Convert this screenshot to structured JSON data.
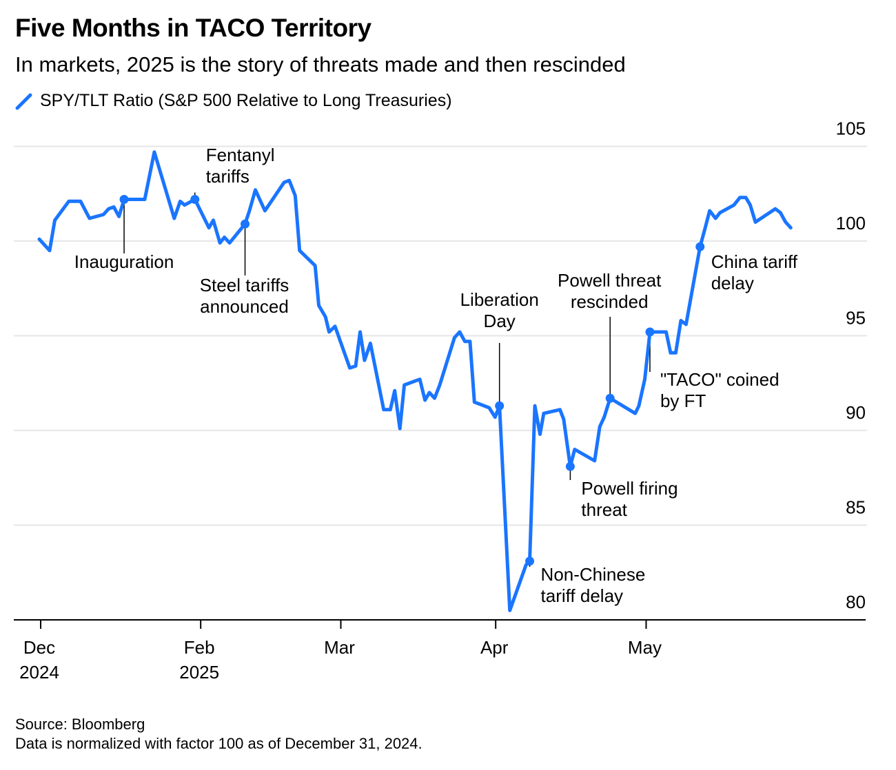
{
  "title": "Five Months in TACO Territory",
  "subtitle": "In markets, 2025 is the story of threats made and then rescinded",
  "legend": {
    "label": "SPY/TLT Ratio (S&P 500 Relative to Long Treasuries)",
    "icon": "line-swatch-icon",
    "color": "#1a75ff"
  },
  "footer": {
    "source": "Source: Bloomberg",
    "note": "Data is normalized with factor 100 as of December 31, 2024."
  },
  "chart_data": {
    "type": "line",
    "title": "Five Months in TACO Territory",
    "xlabel": "",
    "ylabel": "",
    "x_units": "trading days since Dec 31, 2024",
    "xlim": [
      0,
      110
    ],
    "ylim": [
      80,
      105
    ],
    "yticks": [
      80,
      85,
      90,
      95,
      100,
      105
    ],
    "grid": true,
    "legend_position": "top-left",
    "xticks": [
      {
        "x": 0,
        "label": [
          "Dec",
          "2024"
        ]
      },
      {
        "x": 21.7,
        "label": [
          "Feb",
          "2025"
        ]
      },
      {
        "x": 40.7,
        "label": [
          "Mar"
        ]
      },
      {
        "x": 61.7,
        "label": [
          "Apr"
        ]
      },
      {
        "x": 82.1,
        "label": [
          "May"
        ]
      }
    ],
    "series": [
      {
        "name": "SPY/TLT Ratio (S&P 500 Relative to Long Treasuries)",
        "color": "#1a75ff",
        "points": [
          [
            0,
            100.1
          ],
          [
            1.4,
            99.5
          ],
          [
            2.1,
            101.1
          ],
          [
            4.0,
            102.1
          ],
          [
            5.6,
            102.1
          ],
          [
            6.8,
            101.2
          ],
          [
            8.7,
            101.4
          ],
          [
            9.4,
            101.7
          ],
          [
            10.1,
            101.8
          ],
          [
            10.8,
            101.3
          ],
          [
            11.5,
            102.2
          ],
          [
            14.3,
            102.2
          ],
          [
            15.6,
            104.7
          ],
          [
            18.3,
            101.2
          ],
          [
            19.1,
            102.1
          ],
          [
            19.7,
            101.9
          ],
          [
            21.1,
            102.2
          ],
          [
            23.0,
            100.7
          ],
          [
            23.6,
            101.1
          ],
          [
            24.5,
            99.9
          ],
          [
            25.1,
            100.2
          ],
          [
            25.8,
            99.9
          ],
          [
            27.9,
            100.9
          ],
          [
            28.5,
            101.6
          ],
          [
            29.3,
            102.7
          ],
          [
            30.6,
            101.6
          ],
          [
            33.2,
            103.1
          ],
          [
            33.9,
            103.2
          ],
          [
            34.7,
            102.4
          ],
          [
            35.3,
            99.5
          ],
          [
            37.4,
            98.7
          ],
          [
            37.9,
            96.6
          ],
          [
            38.8,
            96.0
          ],
          [
            39.3,
            95.2
          ],
          [
            40.1,
            95.5
          ],
          [
            42.1,
            93.3
          ],
          [
            42.9,
            93.4
          ],
          [
            43.5,
            95.2
          ],
          [
            44.1,
            93.7
          ],
          [
            44.9,
            94.6
          ],
          [
            46.7,
            91.1
          ],
          [
            47.6,
            91.1
          ],
          [
            48.2,
            92.1
          ],
          [
            48.9,
            90.1
          ],
          [
            49.5,
            92.4
          ],
          [
            51.6,
            92.7
          ],
          [
            52.3,
            91.6
          ],
          [
            52.9,
            92.0
          ],
          [
            53.6,
            91.7
          ],
          [
            54.3,
            92.4
          ],
          [
            56.3,
            94.9
          ],
          [
            57.0,
            95.2
          ],
          [
            57.7,
            94.7
          ],
          [
            58.4,
            94.7
          ],
          [
            59.0,
            91.5
          ],
          [
            61.0,
            91.2
          ],
          [
            61.8,
            90.7
          ],
          [
            62.4,
            91.3
          ],
          [
            63.8,
            80.5
          ],
          [
            66.0,
            82.9
          ],
          [
            66.5,
            83.1
          ],
          [
            67.2,
            91.3
          ],
          [
            67.9,
            89.8
          ],
          [
            68.4,
            90.9
          ],
          [
            70.6,
            91.1
          ],
          [
            71.1,
            90.6
          ],
          [
            72.0,
            88.1
          ],
          [
            72.6,
            89.0
          ],
          [
            75.3,
            88.4
          ],
          [
            76.0,
            90.2
          ],
          [
            76.6,
            90.7
          ],
          [
            77.4,
            91.7
          ],
          [
            80.8,
            90.9
          ],
          [
            81.3,
            91.3
          ],
          [
            82.1,
            92.7
          ],
          [
            82.8,
            95.2
          ],
          [
            85.0,
            95.2
          ],
          [
            85.6,
            94.1
          ],
          [
            86.3,
            94.1
          ],
          [
            87.0,
            95.8
          ],
          [
            87.7,
            95.6
          ],
          [
            89.6,
            99.7
          ],
          [
            90.3,
            100.7
          ],
          [
            90.9,
            101.6
          ],
          [
            91.7,
            101.2
          ],
          [
            92.3,
            101.5
          ],
          [
            94.2,
            101.9
          ],
          [
            95.0,
            102.3
          ],
          [
            95.8,
            102.3
          ],
          [
            96.4,
            101.9
          ],
          [
            97.1,
            101.0
          ],
          [
            99.8,
            101.7
          ],
          [
            100.5,
            101.5
          ],
          [
            101.2,
            101.0
          ],
          [
            101.9,
            100.7
          ]
        ]
      }
    ],
    "annotations": [
      {
        "id": "inauguration",
        "x": 11.5,
        "y": 102.2,
        "lines": [
          "Inauguration"
        ]
      },
      {
        "id": "fentanyl-tariffs",
        "x": 21.1,
        "y": 102.2,
        "lines": [
          "Fentanyl",
          "tariffs"
        ]
      },
      {
        "id": "steel-tariffs",
        "x": 27.9,
        "y": 100.9,
        "lines": [
          "Steel tariffs",
          "announced"
        ]
      },
      {
        "id": "liberation-day",
        "x": 62.4,
        "y": 91.3,
        "lines": [
          "Liberation",
          "Day"
        ]
      },
      {
        "id": "non-chinese-tariff-delay",
        "x": 66.5,
        "y": 83.1,
        "lines": [
          "Non-Chinese",
          "tariff delay"
        ]
      },
      {
        "id": "powell-firing-threat",
        "x": 72.0,
        "y": 88.1,
        "lines": [
          "Powell firing",
          "threat"
        ]
      },
      {
        "id": "powell-threat-rescinded",
        "x": 77.4,
        "y": 91.7,
        "lines": [
          "Powell threat",
          "rescinded"
        ]
      },
      {
        "id": "taco-coined",
        "x": 82.8,
        "y": 95.2,
        "lines": [
          "\"TACO\" coined",
          "by FT"
        ]
      },
      {
        "id": "china-tariff-delay",
        "x": 89.6,
        "y": 99.7,
        "lines": [
          "China tariff",
          "delay"
        ]
      }
    ]
  }
}
